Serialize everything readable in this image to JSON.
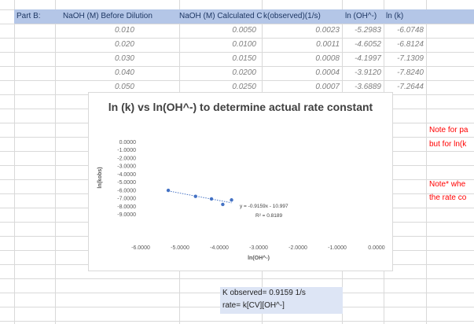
{
  "sheet": {
    "section_label": "Part B:",
    "headers": [
      "NaOH (M) Before Dilution",
      "NaOH (M) Calculated Column'",
      "k(observed)(1/s)",
      "ln (OH^-)",
      "ln (k)"
    ],
    "rows": [
      [
        "0.010",
        "0.0050",
        "0.0023",
        "-5.2983",
        "-6.0748"
      ],
      [
        "0.020",
        "0.0100",
        "0.0011",
        "-4.6052",
        "-6.8124"
      ],
      [
        "0.030",
        "0.0150",
        "0.0008",
        "-4.1997",
        "-7.1309"
      ],
      [
        "0.040",
        "0.0200",
        "0.0004",
        "-3.9120",
        "-7.8240"
      ],
      [
        "0.050",
        "0.0250",
        "0.0007",
        "-3.6889",
        "-7.2644"
      ]
    ],
    "notes": [
      "Note for pa",
      "but for ln(k",
      "Note* whe",
      "the rate co"
    ],
    "k_observed": "K observed= 0.9159 1/s",
    "rate_eq": "rate= k[CV][OH^-]"
  },
  "chart_data": {
    "type": "scatter",
    "title": "ln (k) vs ln(OH^-) to determine actual rate constant",
    "xlabel": "ln(OH^-)",
    "ylabel": "ln(kobs)",
    "xlim": [
      -6,
      0
    ],
    "ylim": [
      -9,
      0
    ],
    "x_ticks": [
      "-6.0000",
      "-5.0000",
      "-4.0000",
      "-3.0000",
      "-2.0000",
      "-1.0000",
      "0.0000"
    ],
    "y_ticks": [
      "0.0000",
      "-1.0000",
      "-2.0000",
      "-3.0000",
      "-4.0000",
      "-5.0000",
      "-6.0000",
      "-7.0000",
      "-8.0000",
      "-9.0000"
    ],
    "series": [
      {
        "x": [
          -5.2983,
          -4.6052,
          -4.1997,
          -3.912,
          -3.6889
        ],
        "y": [
          -6.0748,
          -6.8124,
          -7.1309,
          -7.824,
          -7.2644
        ]
      }
    ],
    "trendline": {
      "slope": -0.9159,
      "intercept": -10.997
    },
    "equation_label": "y = -0.9159x - 10.997",
    "r2_label": "R² = 0.8189",
    "marker_color": "#4472c4",
    "grid": false
  }
}
